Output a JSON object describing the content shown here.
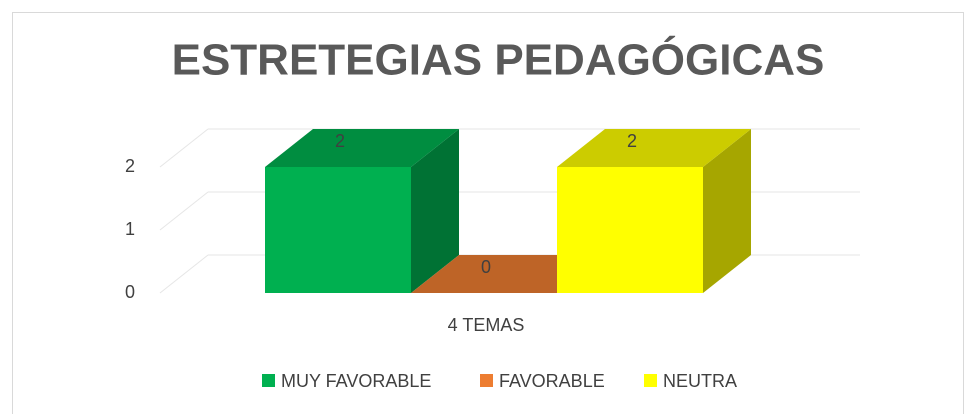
{
  "chart_data": {
    "type": "bar3d",
    "title": "ESTRETEGIAS PEDAGÓGICAS",
    "categories": [
      "4 TEMAS"
    ],
    "series": [
      {
        "name": "MUY FAVORABLE",
        "color": "#00b050",
        "values": [
          2
        ]
      },
      {
        "name": "FAVORABLE",
        "color": "#ed7d31",
        "values": [
          0
        ]
      },
      {
        "name": "NEUTRA",
        "color": "#ffff00",
        "values": [
          2
        ]
      }
    ],
    "ylim": [
      0,
      2
    ],
    "yticks": [
      0,
      1,
      2
    ],
    "grid": true,
    "legend": "bottom"
  }
}
